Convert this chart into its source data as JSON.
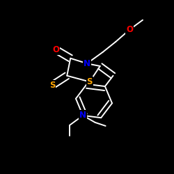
{
  "background_color": "#000000",
  "bond_color": "#ffffff",
  "atom_colors": {
    "O": "#ff0000",
    "N": "#0000ff",
    "S": "#ffa500"
  },
  "bond_lw": 1.4,
  "dbl_sep": 0.016,
  "figsize": [
    2.5,
    2.5
  ],
  "dpi": 100
}
